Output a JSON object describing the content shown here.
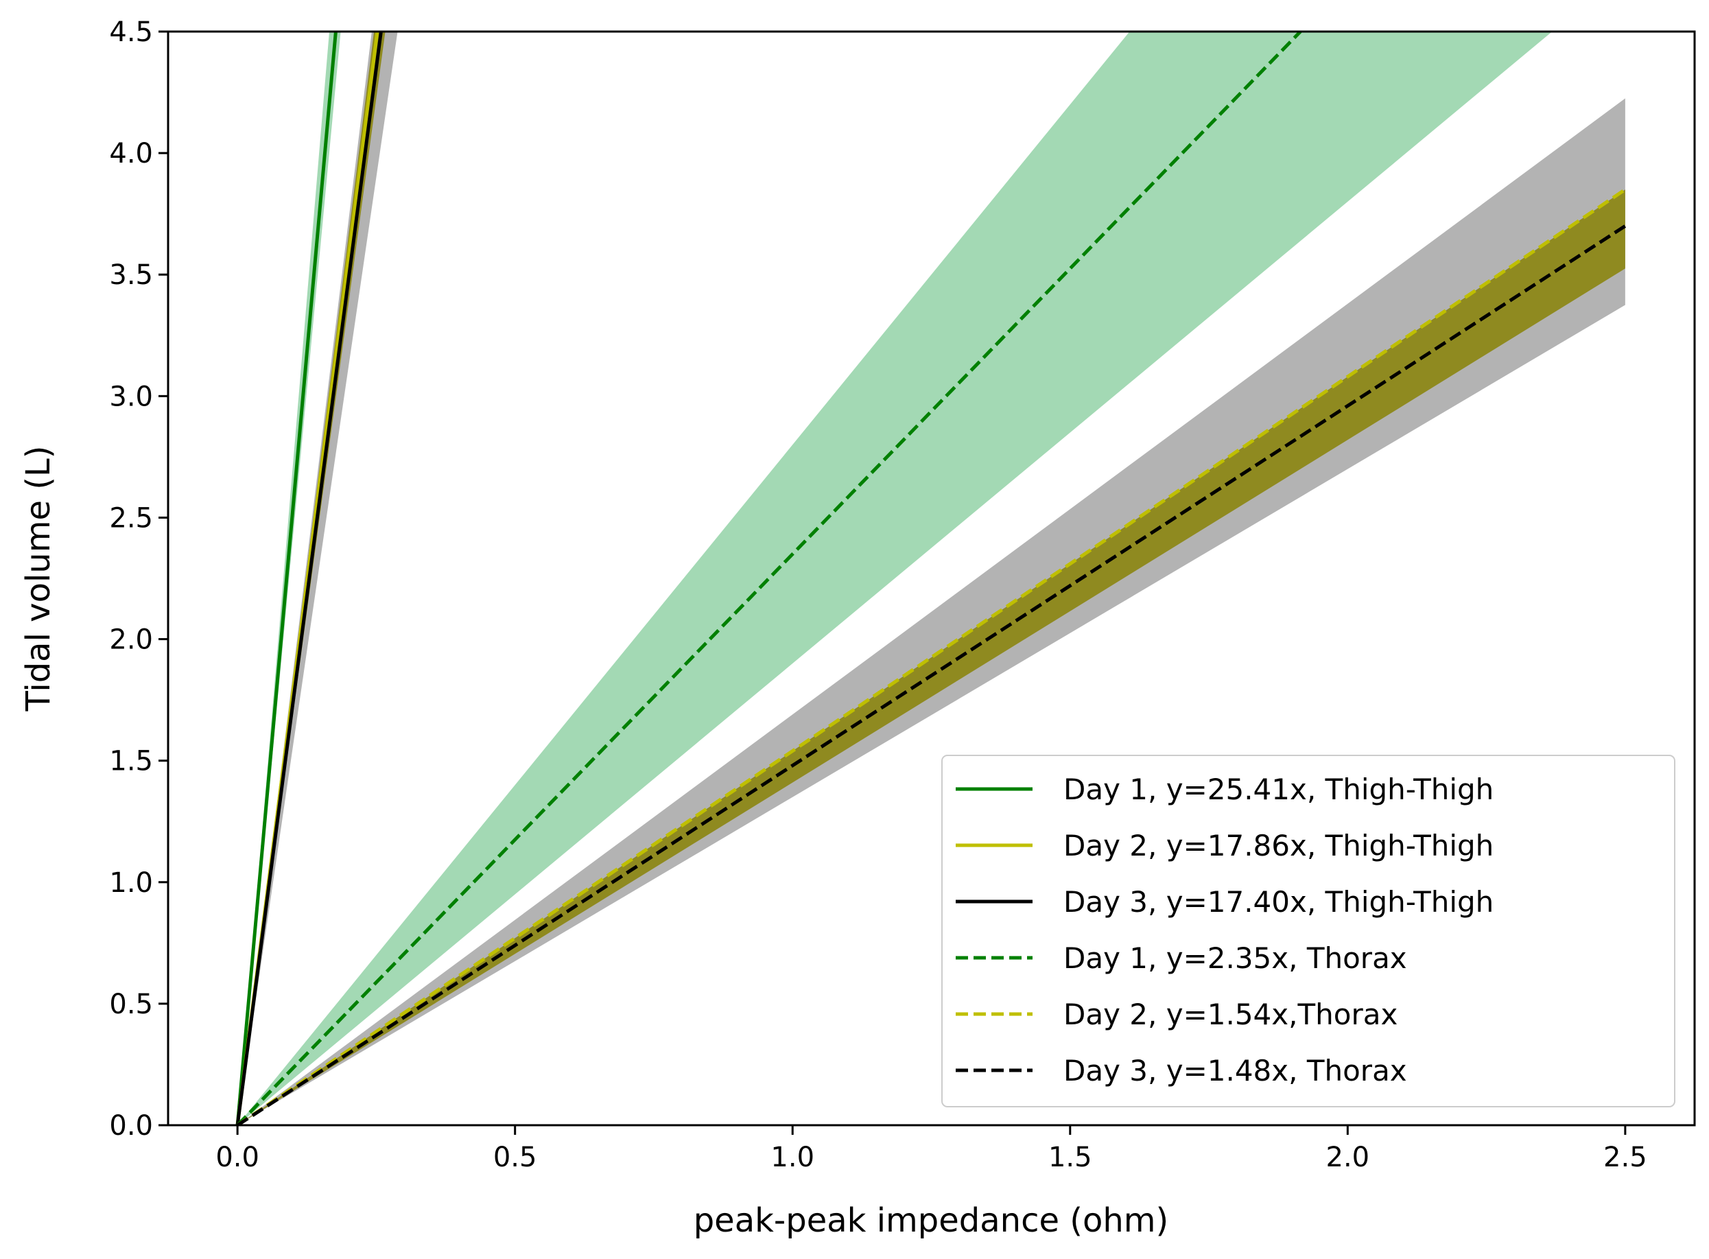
{
  "chart_data": {
    "type": "line",
    "title": "",
    "xlabel": "peak-peak impedance (ohm)",
    "ylabel": "Tidal volume (L)",
    "xlim": [
      -0.125,
      2.625
    ],
    "ylim": [
      0,
      4.5
    ],
    "xticks": [
      "0.0",
      "0.5",
      "1.0",
      "1.5",
      "2.0",
      "2.5"
    ],
    "yticks": [
      "0.0",
      "0.5",
      "1.0",
      "1.5",
      "2.0",
      "2.5",
      "3.0",
      "3.5",
      "4.0",
      "4.5"
    ],
    "legend_position": "lower-right",
    "series": [
      {
        "name": "Day 1, y=25.41x, Thigh-Thigh",
        "slope": 25.41,
        "color": "#008000",
        "dash": "solid",
        "band": [
          24.2,
          27.2
        ],
        "band_color": "#a3d9b4",
        "x_max": 2.5
      },
      {
        "name": "Day 2, y=17.86x, Thigh-Thigh",
        "slope": 17.86,
        "color": "#bfbf00",
        "dash": "solid",
        "band": [
          16.9,
          18.3
        ],
        "band_color": "#8f8a20",
        "x_max": 2.5
      },
      {
        "name": " Day 3, y=17.40x, Thigh-Thigh",
        "slope": 17.4,
        "color": "#000000",
        "dash": "solid",
        "band": [
          15.6,
          18.6
        ],
        "band_color": "#b3b3b3",
        "x_max": 2.5
      },
      {
        "name": "Day 1, y=2.35x, Thorax",
        "slope": 2.35,
        "color": "#008000",
        "dash": "dashed",
        "band": [
          1.9,
          2.8
        ],
        "band_color": "#a3d9b4",
        "x_max": 2.5
      },
      {
        "name": "Day 2, y=1.54x,Thorax",
        "slope": 1.54,
        "color": "#bfbf00",
        "dash": "dashed",
        "band": [
          1.41,
          1.54
        ],
        "band_color": "#8f8a20",
        "x_max": 2.5
      },
      {
        "name": "Day 3, y=1.48x, Thorax",
        "slope": 1.48,
        "color": "#000000",
        "dash": "dashed",
        "band": [
          1.35,
          1.69
        ],
        "band_color": "#b3b3b3",
        "x_max": 2.5
      }
    ]
  }
}
